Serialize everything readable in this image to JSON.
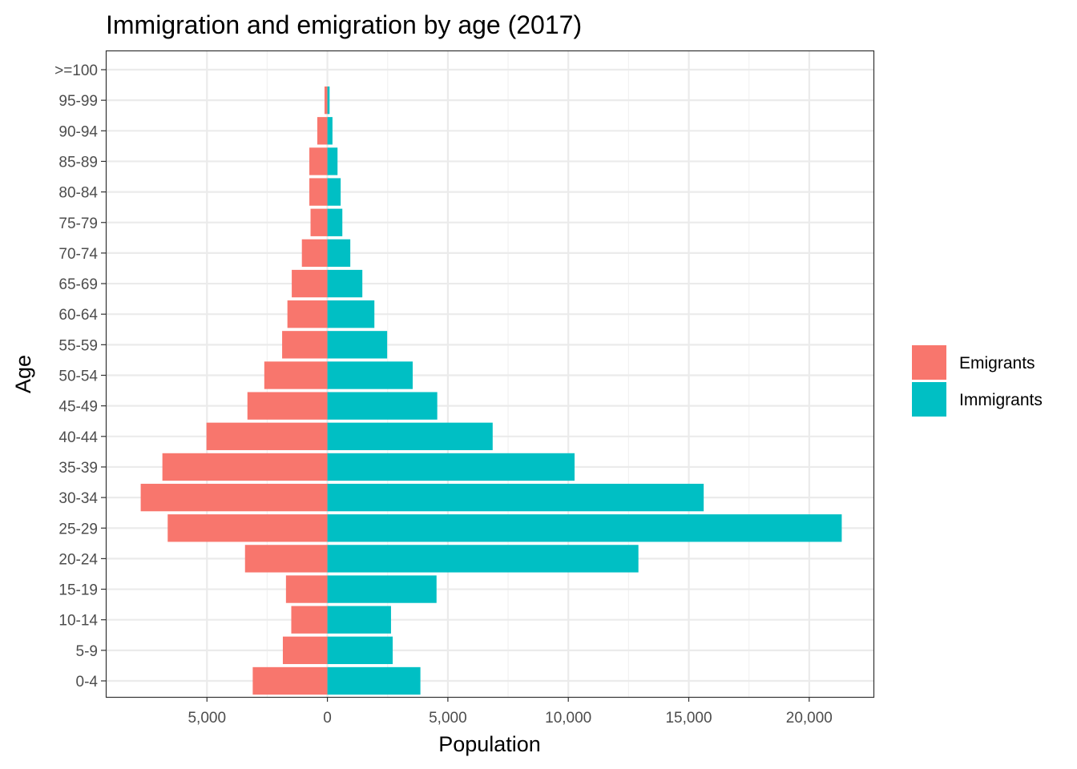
{
  "chart_data": {
    "type": "bar",
    "orientation": "horizontal",
    "title": "Immigration and emigration by age (2017)",
    "xlabel": "Population",
    "ylabel": "Age",
    "xlim": [
      -9200,
      22700
    ],
    "x_ticks": [
      -5000,
      0,
      5000,
      10000,
      15000,
      20000
    ],
    "x_tick_labels": [
      "5,000",
      "0",
      "5,000",
      "10,000",
      "15,000",
      "20,000"
    ],
    "categories": [
      "0-4",
      "5-9",
      "10-14",
      "15-19",
      "20-24",
      "25-29",
      "30-34",
      "35-39",
      "40-44",
      "45-49",
      "50-54",
      "55-59",
      "60-64",
      "65-69",
      "70-74",
      "75-79",
      "80-84",
      "85-89",
      "90-94",
      "95-99",
      ">=100"
    ],
    "series": [
      {
        "name": "Emigrants",
        "color": "#F8766D",
        "values": [
          -3100,
          -1850,
          -1500,
          -1720,
          -3420,
          -6630,
          -7750,
          -6850,
          -5020,
          -3320,
          -2620,
          -1880,
          -1660,
          -1480,
          -1060,
          -700,
          -750,
          -750,
          -420,
          -120,
          0
        ]
      },
      {
        "name": "Immigrants",
        "color": "#00BFC4",
        "values": [
          3860,
          2710,
          2640,
          4530,
          12910,
          21350,
          15620,
          10260,
          6860,
          4560,
          3540,
          2480,
          1950,
          1450,
          950,
          620,
          550,
          420,
          210,
          90,
          0
        ]
      }
    ],
    "legend_position": "right",
    "grid": true
  }
}
